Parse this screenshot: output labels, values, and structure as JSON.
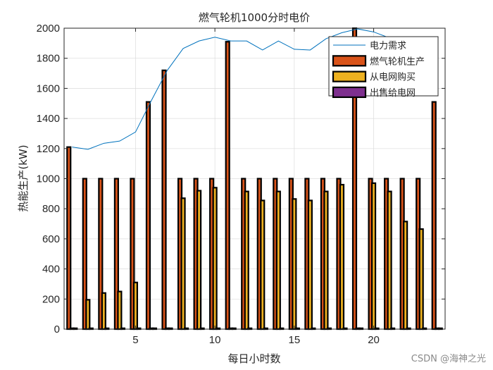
{
  "chart_data": {
    "type": "bar",
    "title": "燃气轮机1000分时电价",
    "xlabel": "每日小时数",
    "ylabel": "热能生产(kW)",
    "xlim": [
      0.5,
      24.5
    ],
    "ylim": [
      0,
      2000
    ],
    "xticks": [
      5,
      10,
      15,
      20
    ],
    "yticks": [
      0,
      200,
      400,
      600,
      800,
      1000,
      1200,
      1400,
      1600,
      1800,
      2000
    ],
    "grid": true,
    "legend_position": "top-right",
    "x": [
      1,
      2,
      3,
      4,
      5,
      6,
      7,
      8,
      9,
      10,
      11,
      12,
      13,
      14,
      15,
      16,
      17,
      18,
      19,
      20,
      21,
      22,
      23,
      24
    ],
    "series": [
      {
        "name": "燃气轮机生产",
        "color": "#D95319",
        "values": [
          1210,
          1000,
          1000,
          1000,
          1000,
          1510,
          1720,
          1000,
          1000,
          1000,
          1910,
          1000,
          1000,
          1000,
          1000,
          1000,
          1000,
          1000,
          2000,
          1000,
          1000,
          1000,
          1000,
          1510
        ]
      },
      {
        "name": "从电网购买",
        "color": "#EDB120",
        "values": [
          0,
          195,
          240,
          250,
          310,
          0,
          0,
          870,
          920,
          940,
          0,
          915,
          855,
          915,
          865,
          855,
          915,
          960,
          0,
          970,
          915,
          715,
          665,
          0
        ]
      },
      {
        "name": "出售给电网",
        "color": "#7E2F8E",
        "values": [
          0,
          0,
          0,
          0,
          0,
          0,
          0,
          0,
          0,
          0,
          0,
          0,
          0,
          0,
          0,
          0,
          0,
          0,
          0,
          0,
          0,
          0,
          0,
          0
        ]
      }
    ],
    "line_series": {
      "name": "电力需求",
      "color": "#0072BD",
      "values": [
        1210,
        1195,
        1235,
        1250,
        1310,
        1520,
        1720,
        1865,
        1915,
        1940,
        1915,
        1915,
        1855,
        1915,
        1860,
        1855,
        1930,
        1970,
        1995,
        1975,
        1935,
        1930,
        1930,
        1930
      ]
    }
  },
  "watermark": "CSDN @海神之光"
}
